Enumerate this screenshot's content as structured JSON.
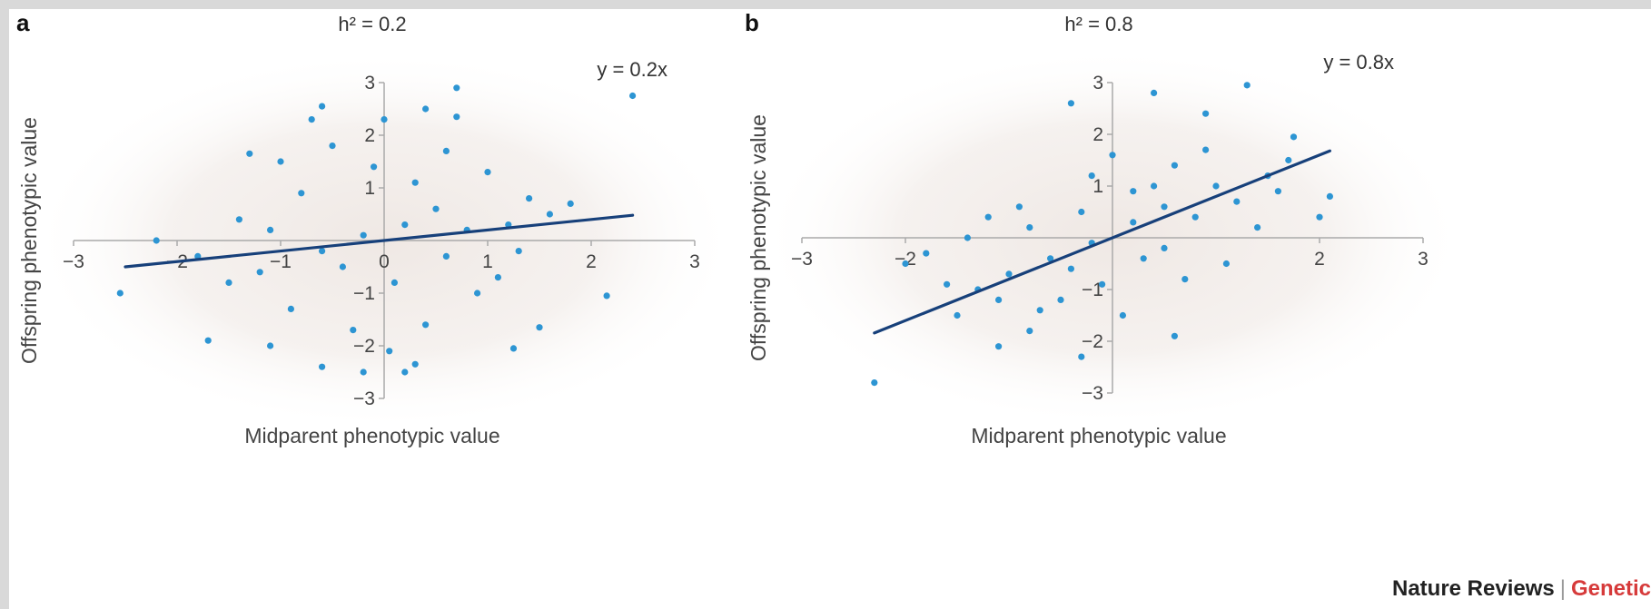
{
  "credit": {
    "publisher": "Nature Reviews",
    "separator": "|",
    "journal": "Genetic"
  },
  "chart_data": [
    {
      "type": "scatter",
      "panel": "a",
      "title": "h² = 0.2",
      "xlabel": "Midparent phenotypic value",
      "ylabel": "Offspring phenotypic value",
      "equation": "y = 0.2x",
      "xlim": [
        -3,
        3
      ],
      "ylim": [
        -3,
        3
      ],
      "xticks": [
        -3,
        -2,
        -1,
        0,
        1,
        2,
        3
      ],
      "yticks": [
        -3,
        -2,
        -1,
        1,
        2,
        3
      ],
      "fit_line": {
        "slope": 0.2,
        "x_range": [
          -2.5,
          2.4
        ]
      },
      "points": [
        [
          2.4,
          2.75
        ],
        [
          -2.55,
          -1.0
        ],
        [
          -1.7,
          -1.9
        ],
        [
          2.15,
          -1.05
        ],
        [
          0.7,
          2.9
        ],
        [
          0.4,
          2.5
        ],
        [
          -0.6,
          2.55
        ],
        [
          -0.7,
          2.3
        ],
        [
          0.0,
          2.3
        ],
        [
          0.7,
          2.35
        ],
        [
          1.25,
          -2.05
        ],
        [
          0.3,
          -2.35
        ],
        [
          0.2,
          -2.5
        ],
        [
          -0.2,
          -2.5
        ],
        [
          -0.6,
          -2.4
        ],
        [
          -1.1,
          -2.0
        ],
        [
          0.05,
          -2.1
        ],
        [
          -1.3,
          1.65
        ],
        [
          1.8,
          0.7
        ],
        [
          1.5,
          -1.65
        ],
        [
          -2.2,
          0.0
        ],
        [
          -1.0,
          1.5
        ],
        [
          -0.5,
          1.8
        ],
        [
          0.6,
          1.7
        ],
        [
          1.0,
          1.3
        ],
        [
          1.4,
          0.8
        ],
        [
          1.6,
          0.5
        ],
        [
          -1.5,
          -0.8
        ],
        [
          -1.2,
          -0.6
        ],
        [
          -0.9,
          -1.3
        ],
        [
          0.9,
          -1.0
        ],
        [
          1.1,
          -0.7
        ],
        [
          0.4,
          -1.6
        ],
        [
          -0.3,
          -1.7
        ],
        [
          -0.8,
          0.9
        ],
        [
          0.5,
          0.6
        ],
        [
          0.2,
          0.3
        ],
        [
          -0.2,
          0.1
        ],
        [
          0.8,
          0.2
        ],
        [
          1.2,
          0.3
        ],
        [
          -1.4,
          0.4
        ],
        [
          -1.8,
          -0.3
        ],
        [
          -0.4,
          -0.5
        ],
        [
          0.1,
          -0.8
        ],
        [
          0.6,
          -0.3
        ],
        [
          -0.6,
          -0.2
        ],
        [
          0.3,
          1.1
        ],
        [
          -0.1,
          1.4
        ],
        [
          1.3,
          -0.2
        ],
        [
          -1.1,
          0.2
        ]
      ]
    },
    {
      "type": "scatter",
      "panel": "b",
      "title": "h² = 0.8",
      "xlabel": "Midparent phenotypic value",
      "ylabel": "Offspring phenotypic value",
      "equation": "y = 0.8x",
      "xlim": [
        -3,
        3
      ],
      "ylim": [
        -3,
        3
      ],
      "xticks": [
        -3,
        -2,
        2,
        3
      ],
      "yticks": [
        -3,
        -2,
        -1,
        1,
        2,
        3
      ],
      "fit_line": {
        "slope": 0.8,
        "x_range": [
          -2.3,
          2.1
        ]
      },
      "points": [
        [
          -2.3,
          -2.8
        ],
        [
          1.3,
          2.95
        ],
        [
          0.4,
          2.8
        ],
        [
          -0.4,
          2.6
        ],
        [
          0.9,
          2.4
        ],
        [
          1.75,
          1.95
        ],
        [
          2.1,
          0.8
        ],
        [
          2.0,
          0.4
        ],
        [
          -1.1,
          -2.1
        ],
        [
          -0.3,
          -2.3
        ],
        [
          0.6,
          -1.9
        ],
        [
          -0.8,
          -1.8
        ],
        [
          -1.5,
          -1.5
        ],
        [
          -2.0,
          -0.5
        ],
        [
          -1.8,
          -0.3
        ],
        [
          1.5,
          1.2
        ],
        [
          1.0,
          1.0
        ],
        [
          0.5,
          0.6
        ],
        [
          0.2,
          0.3
        ],
        [
          -0.2,
          -0.1
        ],
        [
          -0.6,
          -0.4
        ],
        [
          -1.0,
          -0.7
        ],
        [
          -1.3,
          -1.0
        ],
        [
          0.8,
          0.4
        ],
        [
          1.2,
          0.7
        ],
        [
          -0.3,
          0.5
        ],
        [
          0.3,
          -0.4
        ],
        [
          -0.8,
          0.2
        ],
        [
          0.6,
          1.4
        ],
        [
          -0.5,
          -1.2
        ],
        [
          1.7,
          1.5
        ],
        [
          0.0,
          1.6
        ],
        [
          -1.2,
          0.4
        ],
        [
          1.1,
          -0.5
        ],
        [
          -0.1,
          -0.9
        ],
        [
          0.4,
          1.0
        ],
        [
          -0.7,
          -1.4
        ],
        [
          1.4,
          0.2
        ],
        [
          -1.6,
          -0.9
        ],
        [
          0.9,
          1.7
        ],
        [
          -0.2,
          1.2
        ],
        [
          0.1,
          -1.5
        ],
        [
          0.7,
          -0.8
        ],
        [
          -0.9,
          0.6
        ],
        [
          1.6,
          0.9
        ],
        [
          -1.4,
          0.0
        ],
        [
          0.2,
          0.9
        ],
        [
          -0.4,
          -0.6
        ],
        [
          0.5,
          -0.2
        ],
        [
          -1.1,
          -1.2
        ]
      ]
    }
  ]
}
